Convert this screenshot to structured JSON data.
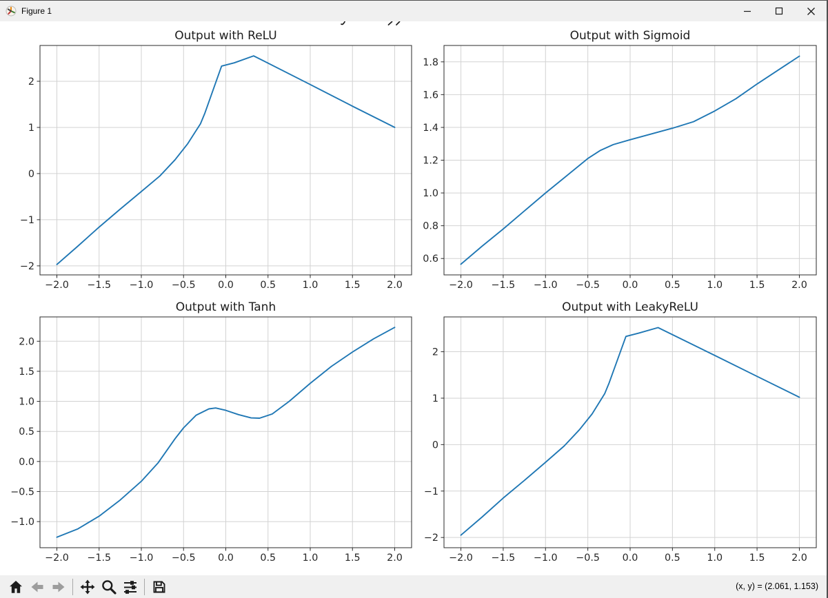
{
  "window": {
    "title": "Figure 1",
    "icon": "matplotlib-logo-icon",
    "controls": [
      {
        "name": "minimize",
        "icon": "minimize-icon"
      },
      {
        "name": "maximize",
        "icon": "maximize-icon"
      },
      {
        "name": "close",
        "icon": "close-icon"
      }
    ]
  },
  "figure": {
    "background": "#ffffff",
    "suptitle_clipped_note": "figure suptitle is cut off by the title bar; only small letter descenders are visible at top center"
  },
  "toolbar": {
    "background": "#f0f0f0",
    "buttons": [
      {
        "name": "home",
        "icon": "home-icon",
        "disabled": false
      },
      {
        "name": "back",
        "icon": "back-arrow-icon",
        "disabled": true
      },
      {
        "name": "forward",
        "icon": "forward-arrow-icon",
        "disabled": true
      },
      {
        "type": "separator"
      },
      {
        "name": "pan",
        "icon": "pan-arrows-icon",
        "disabled": false
      },
      {
        "name": "zoom",
        "icon": "zoom-magnifier-icon",
        "disabled": false
      },
      {
        "name": "configure-subplots",
        "icon": "sliders-icon",
        "disabled": false
      },
      {
        "type": "separator"
      },
      {
        "name": "save",
        "icon": "save-floppy-icon",
        "disabled": false
      }
    ]
  },
  "statusbar": {
    "coordinates": "(x, y) = (2.061, 1.153)"
  },
  "chart_data": [
    {
      "id": "relu",
      "type": "line",
      "title": "Output with ReLU",
      "line_color": "#1f77b4",
      "grid": true,
      "legend": null,
      "xlim": [
        -2.2,
        2.2
      ],
      "ylim": [
        -2.196,
        2.776
      ],
      "xticks": [
        {
          "v": -2.0,
          "label": "−2.0"
        },
        {
          "v": -1.5,
          "label": "−1.5"
        },
        {
          "v": -1.0,
          "label": "−1.0"
        },
        {
          "v": -0.5,
          "label": "−0.5"
        },
        {
          "v": 0.0,
          "label": "0.0"
        },
        {
          "v": 0.5,
          "label": "0.5"
        },
        {
          "v": 1.0,
          "label": "1.0"
        },
        {
          "v": 1.5,
          "label": "1.5"
        },
        {
          "v": 2.0,
          "label": "2.0"
        }
      ],
      "yticks": [
        {
          "v": -2,
          "label": "−2"
        },
        {
          "v": -1,
          "label": "−1"
        },
        {
          "v": 0,
          "label": "0"
        },
        {
          "v": 1,
          "label": "1"
        },
        {
          "v": 2,
          "label": "2"
        }
      ],
      "points": [
        [
          -2.0,
          -1.97
        ],
        [
          -1.75,
          -1.57
        ],
        [
          -1.5,
          -1.16
        ],
        [
          -1.25,
          -0.77
        ],
        [
          -1.0,
          -0.39
        ],
        [
          -0.78,
          -0.05
        ],
        [
          -0.6,
          0.3
        ],
        [
          -0.45,
          0.65
        ],
        [
          -0.3,
          1.08
        ],
        [
          -0.25,
          1.3
        ],
        [
          -0.05,
          2.33
        ],
        [
          0.1,
          2.4
        ],
        [
          0.33,
          2.55
        ],
        [
          1.0,
          1.93
        ],
        [
          1.5,
          1.46
        ],
        [
          2.0,
          1.0
        ]
      ]
    },
    {
      "id": "sigmoid",
      "type": "line",
      "title": "Output with Sigmoid",
      "line_color": "#1f77b4",
      "grid": true,
      "legend": null,
      "xlim": [
        -2.2,
        2.2
      ],
      "ylim": [
        0.5,
        1.9
      ],
      "xticks": [
        {
          "v": -2.0,
          "label": "−2.0"
        },
        {
          "v": -1.5,
          "label": "−1.5"
        },
        {
          "v": -1.0,
          "label": "−1.0"
        },
        {
          "v": -0.5,
          "label": "−0.5"
        },
        {
          "v": 0.0,
          "label": "0.0"
        },
        {
          "v": 0.5,
          "label": "0.5"
        },
        {
          "v": 1.0,
          "label": "1.0"
        },
        {
          "v": 1.5,
          "label": "1.5"
        },
        {
          "v": 2.0,
          "label": "2.0"
        }
      ],
      "yticks": [
        {
          "v": 0.6,
          "label": "0.6"
        },
        {
          "v": 0.8,
          "label": "0.8"
        },
        {
          "v": 1.0,
          "label": "1.0"
        },
        {
          "v": 1.2,
          "label": "1.2"
        },
        {
          "v": 1.4,
          "label": "1.4"
        },
        {
          "v": 1.6,
          "label": "1.6"
        },
        {
          "v": 1.8,
          "label": "1.8"
        }
      ],
      "points": [
        [
          -2.0,
          0.565
        ],
        [
          -1.75,
          0.675
        ],
        [
          -1.5,
          0.78
        ],
        [
          -1.25,
          0.89
        ],
        [
          -1.0,
          1.0
        ],
        [
          -0.75,
          1.105
        ],
        [
          -0.5,
          1.21
        ],
        [
          -0.35,
          1.26
        ],
        [
          -0.2,
          1.295
        ],
        [
          0.0,
          1.325
        ],
        [
          0.25,
          1.36
        ],
        [
          0.5,
          1.395
        ],
        [
          0.75,
          1.435
        ],
        [
          1.0,
          1.5
        ],
        [
          1.25,
          1.575
        ],
        [
          1.5,
          1.665
        ],
        [
          1.75,
          1.75
        ],
        [
          2.0,
          1.835
        ]
      ]
    },
    {
      "id": "tanh",
      "type": "line",
      "title": "Output with Tanh",
      "line_color": "#1f77b4",
      "grid": true,
      "legend": null,
      "xlim": [
        -2.2,
        2.2
      ],
      "ylim": [
        -1.4345,
        2.4045
      ],
      "xticks": [
        {
          "v": -2.0,
          "label": "−2.0"
        },
        {
          "v": -1.5,
          "label": "−1.5"
        },
        {
          "v": -1.0,
          "label": "−1.0"
        },
        {
          "v": -0.5,
          "label": "−0.5"
        },
        {
          "v": 0.0,
          "label": "0.0"
        },
        {
          "v": 0.5,
          "label": "0.5"
        },
        {
          "v": 1.0,
          "label": "1.0"
        },
        {
          "v": 1.5,
          "label": "1.5"
        },
        {
          "v": 2.0,
          "label": "2.0"
        }
      ],
      "yticks": [
        {
          "v": -1.0,
          "label": "−1.0"
        },
        {
          "v": -0.5,
          "label": "−0.5"
        },
        {
          "v": 0.0,
          "label": "0.0"
        },
        {
          "v": 0.5,
          "label": "0.5"
        },
        {
          "v": 1.0,
          "label": "1.0"
        },
        {
          "v": 1.5,
          "label": "1.5"
        },
        {
          "v": 2.0,
          "label": "2.0"
        }
      ],
      "points": [
        [
          -2.0,
          -1.26
        ],
        [
          -1.75,
          -1.12
        ],
        [
          -1.5,
          -0.91
        ],
        [
          -1.25,
          -0.64
        ],
        [
          -1.0,
          -0.33
        ],
        [
          -0.8,
          -0.02
        ],
        [
          -0.6,
          0.38
        ],
        [
          -0.5,
          0.56
        ],
        [
          -0.35,
          0.77
        ],
        [
          -0.2,
          0.875
        ],
        [
          -0.12,
          0.89
        ],
        [
          0.0,
          0.85
        ],
        [
          0.15,
          0.78
        ],
        [
          0.3,
          0.725
        ],
        [
          0.4,
          0.72
        ],
        [
          0.55,
          0.79
        ],
        [
          0.75,
          1.0
        ],
        [
          1.0,
          1.3
        ],
        [
          1.25,
          1.58
        ],
        [
          1.5,
          1.82
        ],
        [
          1.75,
          2.04
        ],
        [
          2.0,
          2.23
        ]
      ]
    },
    {
      "id": "leakyrelu",
      "type": "line",
      "title": "Output with LeakyReLU",
      "line_color": "#1f77b4",
      "grid": true,
      "legend": null,
      "xlim": [
        -2.2,
        2.2
      ],
      "ylim": [
        -2.22,
        2.75
      ],
      "xticks": [
        {
          "v": -2.0,
          "label": "−2.0"
        },
        {
          "v": -1.5,
          "label": "−1.5"
        },
        {
          "v": -1.0,
          "label": "−1.0"
        },
        {
          "v": -0.5,
          "label": "−0.5"
        },
        {
          "v": 0.0,
          "label": "0.0"
        },
        {
          "v": 0.5,
          "label": "0.5"
        },
        {
          "v": 1.0,
          "label": "1.0"
        },
        {
          "v": 1.5,
          "label": "1.5"
        },
        {
          "v": 2.0,
          "label": "2.0"
        }
      ],
      "yticks": [
        {
          "v": -2,
          "label": "−2"
        },
        {
          "v": -1,
          "label": "−1"
        },
        {
          "v": 0,
          "label": "0"
        },
        {
          "v": 1,
          "label": "1"
        },
        {
          "v": 2,
          "label": "2"
        }
      ],
      "points": [
        [
          -2.0,
          -1.95
        ],
        [
          -1.75,
          -1.56
        ],
        [
          -1.5,
          -1.15
        ],
        [
          -1.25,
          -0.77
        ],
        [
          -1.0,
          -0.38
        ],
        [
          -0.78,
          -0.03
        ],
        [
          -0.6,
          0.32
        ],
        [
          -0.45,
          0.66
        ],
        [
          -0.3,
          1.1
        ],
        [
          -0.25,
          1.32
        ],
        [
          -0.05,
          2.33
        ],
        [
          0.1,
          2.4
        ],
        [
          0.33,
          2.52
        ],
        [
          1.0,
          1.92
        ],
        [
          1.5,
          1.47
        ],
        [
          2.0,
          1.02
        ]
      ]
    }
  ]
}
